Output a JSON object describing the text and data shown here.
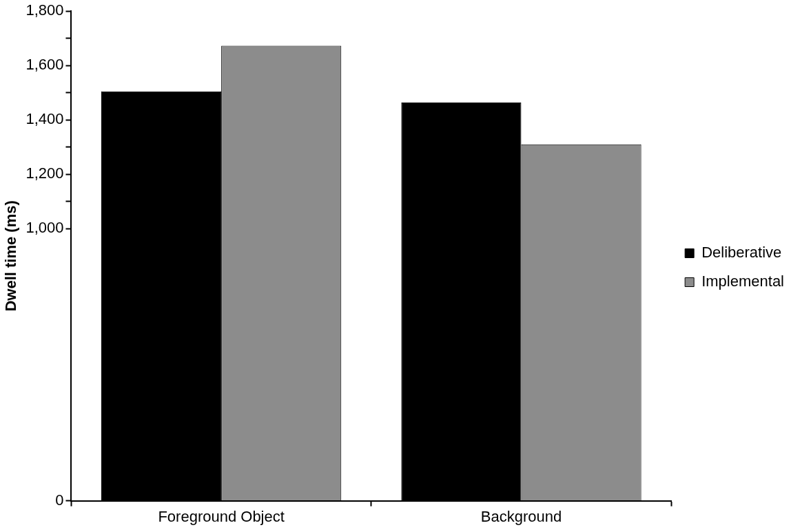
{
  "chart_data": {
    "type": "bar",
    "ylabel": "Dwell time (ms)",
    "categories": [
      "Foreground Object",
      "Background"
    ],
    "series": [
      {
        "name": "Deliberative",
        "color": "#000000",
        "values": [
          1505,
          1464
        ]
      },
      {
        "name": "Implemental",
        "color": "#8c8c8c",
        "values": [
          1673,
          1310
        ]
      }
    ],
    "ylim": [
      0,
      1800
    ],
    "yticks": [
      0,
      {
        "value": 1000,
        "label": "1,000"
      },
      {
        "value": 1100,
        "label": null
      },
      {
        "value": 1200,
        "label": "1,200"
      },
      {
        "value": 1300,
        "label": null
      },
      {
        "value": 1400,
        "label": "1,400"
      },
      {
        "value": 1500,
        "label": null
      },
      {
        "value": 1600,
        "label": "1,600"
      },
      {
        "value": 1700,
        "label": null
      },
      {
        "value": 1800,
        "label": "1,800"
      }
    ],
    "grid": false,
    "legend": "right"
  }
}
